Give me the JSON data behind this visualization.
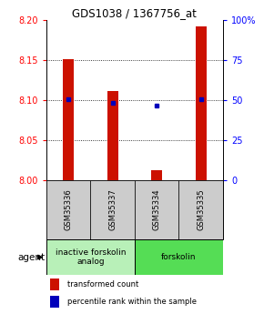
{
  "title": "GDS1038 / 1367756_at",
  "samples": [
    "GSM35336",
    "GSM35337",
    "GSM35334",
    "GSM35335"
  ],
  "red_values": [
    8.152,
    8.112,
    8.013,
    8.192
  ],
  "blue_values": [
    8.101,
    8.097,
    8.093,
    8.101
  ],
  "ylim_left": [
    8.0,
    8.2
  ],
  "ylim_right": [
    0,
    100
  ],
  "yticks_left": [
    8.0,
    8.05,
    8.1,
    8.15,
    8.2
  ],
  "yticks_right": [
    0,
    25,
    50,
    75,
    100
  ],
  "ytick_labels_right": [
    "0",
    "25",
    "50",
    "75",
    "100%"
  ],
  "gridlines": [
    8.05,
    8.1,
    8.15
  ],
  "groups": [
    {
      "label": "inactive forskolin\nanalog",
      "samples": [
        0,
        1
      ],
      "color": "#b8f0b8"
    },
    {
      "label": "forskolin",
      "samples": [
        2,
        3
      ],
      "color": "#55dd55"
    }
  ],
  "agent_label": "agent",
  "legend_red": "transformed count",
  "legend_blue": "percentile rank within the sample",
  "bar_color": "#cc1100",
  "dot_color": "#0000bb",
  "sample_box_color": "#cccccc",
  "bar_width": 0.25
}
